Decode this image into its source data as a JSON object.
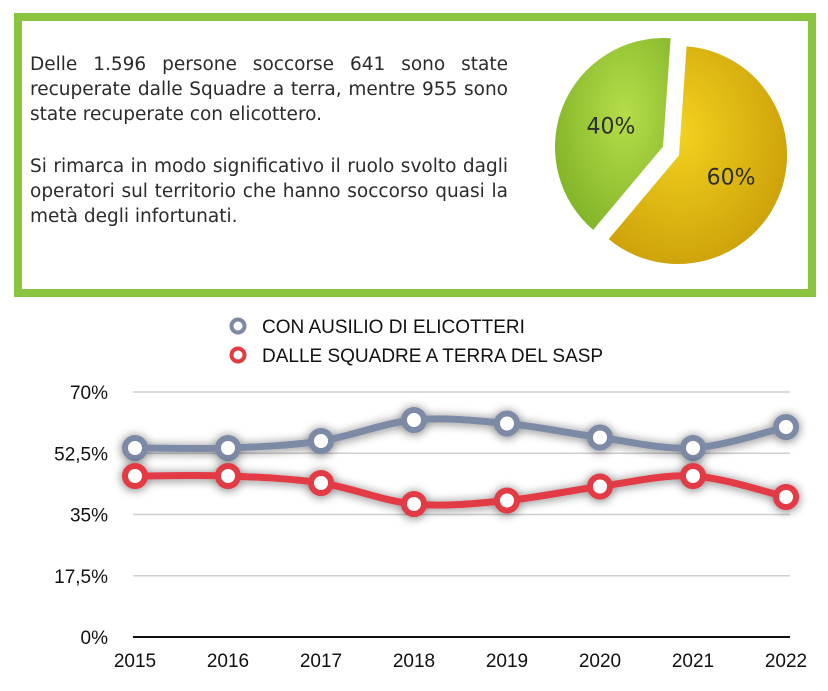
{
  "text_box": {
    "paragraph_1": "Delle 1.596 persone soccorse 641 sono state recuperate dalle Squadre a terra, mentre 955 sono state recuperate con elicottero.",
    "paragraph_2": "Si rimarca in modo significativo  il ruolo svolto dagli operatori sul territorio che hanno soccorso quasi la metà degli infortunati."
  },
  "colors": {
    "frame": "#8bc53f",
    "pie_green": "#9acd32",
    "pie_yellow": "#e2b90c",
    "series_helicopter": "#7d8aa6",
    "series_ground": "#e23b45"
  },
  "chart_data": [
    {
      "type": "pie",
      "slices": [
        {
          "label": "40%",
          "value": 40,
          "color_key": "pie_green"
        },
        {
          "label": "60%",
          "value": 60,
          "color_key": "pie_yellow"
        }
      ]
    },
    {
      "type": "line",
      "title": "",
      "xlabel": "",
      "ylabel": "",
      "x": [
        "2015",
        "2016",
        "2017",
        "2018",
        "2019",
        "2020",
        "2021",
        "2022"
      ],
      "ylim": [
        0,
        70
      ],
      "yticks": [
        0,
        17.5,
        35,
        52.5,
        70
      ],
      "ytick_labels": [
        "0%",
        "17,5%",
        "35%",
        "52,5%",
        "70%"
      ],
      "grid": true,
      "legend_position": "top-center",
      "series": [
        {
          "name": "CON AUSILIO DI ELICOTTERI",
          "color_key": "series_helicopter",
          "values": [
            54,
            54,
            56,
            62,
            61,
            57,
            54,
            60
          ]
        },
        {
          "name": "DALLE SQUADRE A TERRA DEL SASP",
          "color_key": "series_ground",
          "values": [
            46,
            46,
            44,
            38,
            39,
            43,
            46,
            40
          ]
        }
      ]
    }
  ]
}
